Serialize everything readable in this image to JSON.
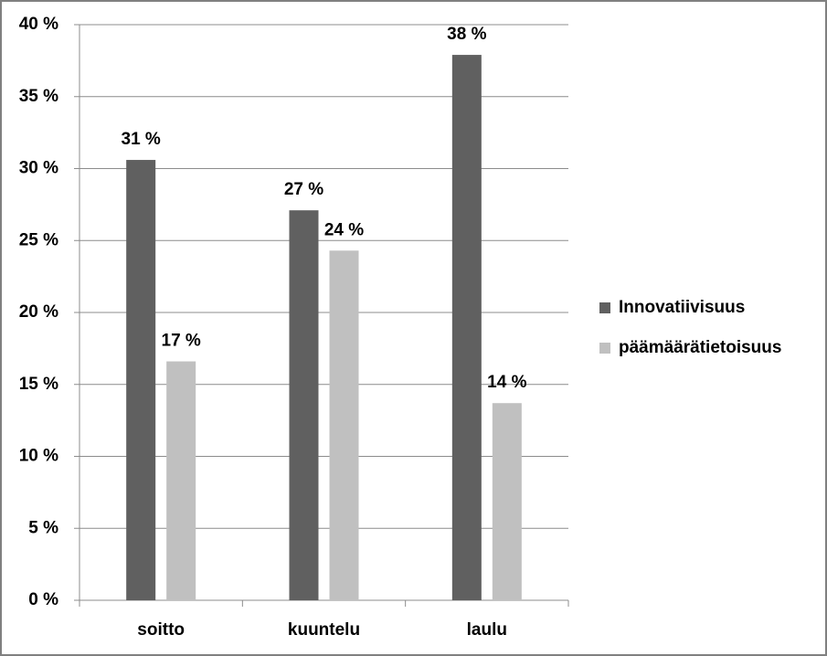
{
  "chart_data": {
    "type": "bar",
    "categories": [
      "soitto",
      "kuuntelu",
      "laulu"
    ],
    "series": [
      {
        "name": "Innovatiivisuus",
        "color": "#606060",
        "values": [
          30.6,
          27.1,
          37.9
        ],
        "value_labels": [
          "31 %",
          "27 %",
          "38 %"
        ]
      },
      {
        "name": "päämäärätietoisuus",
        "color": "#c0c0c0",
        "values": [
          16.6,
          24.3,
          13.7
        ],
        "value_labels": [
          "17 %",
          "24 %",
          "14 %"
        ]
      }
    ],
    "ylim": [
      0,
      40
    ],
    "yticks": [
      {
        "value": 0,
        "label": "0 %"
      },
      {
        "value": 5,
        "label": "5 %"
      },
      {
        "value": 10,
        "label": "10 %"
      },
      {
        "value": 15,
        "label": "15 %"
      },
      {
        "value": 20,
        "label": "20 %"
      },
      {
        "value": 25,
        "label": "25 %"
      },
      {
        "value": 30,
        "label": "30 %"
      },
      {
        "value": 35,
        "label": "35 %"
      },
      {
        "value": 40,
        "label": "40 %"
      }
    ],
    "grid": true,
    "legend": "right"
  }
}
